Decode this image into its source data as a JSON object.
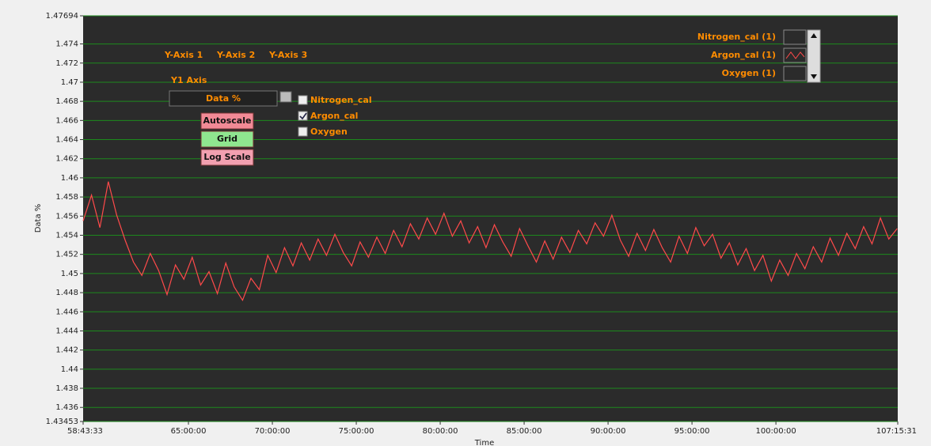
{
  "chart_data": {
    "type": "line",
    "x_label": "Time",
    "y_label": "Data %",
    "x": [
      211413,
      213213,
      215013,
      216813,
      218613,
      220413,
      222213,
      224013,
      225813,
      227613,
      229413,
      231213,
      233013,
      234813,
      236613,
      238413,
      240213,
      242013,
      243813,
      245613,
      247413,
      249213,
      251013,
      252813,
      254613,
      256413,
      258213,
      260013,
      261813,
      263613,
      265413,
      267213,
      269013,
      270813,
      272613,
      274413,
      276213,
      278013,
      279813,
      281613,
      283413,
      285213,
      287013,
      288813,
      290613,
      292413,
      294213,
      296013,
      297813,
      299613,
      301413,
      303213,
      305013,
      306813,
      308613,
      310413,
      312213,
      314013,
      315813,
      317613,
      319413,
      321213,
      323013,
      324813,
      326613,
      328413,
      330213,
      332013,
      333813,
      335613,
      337413,
      339213,
      341013,
      342813,
      344613,
      346413,
      348213,
      350013,
      351813,
      353613,
      355413,
      357213,
      359013,
      360813,
      362613,
      364413,
      366213,
      368013,
      369813,
      371613,
      373413,
      375213,
      377013,
      378813,
      380613,
      382413,
      384213,
      386013
    ],
    "series": [
      {
        "name": "Argon_cal (1)",
        "color": "#ff4a4a",
        "values": [
          1.4555,
          1.4582,
          1.4548,
          1.4596,
          1.4561,
          1.4535,
          1.4512,
          1.4498,
          1.4521,
          1.4503,
          1.4478,
          1.4509,
          1.4494,
          1.4517,
          1.4488,
          1.4502,
          1.4479,
          1.4511,
          1.4486,
          1.4472,
          1.4495,
          1.4483,
          1.4519,
          1.4501,
          1.4527,
          1.4508,
          1.4532,
          1.4514,
          1.4536,
          1.4519,
          1.4541,
          1.4522,
          1.4508,
          1.4533,
          1.4517,
          1.4538,
          1.4521,
          1.4545,
          1.4528,
          1.4552,
          1.4536,
          1.4558,
          1.4541,
          1.4563,
          1.4539,
          1.4555,
          1.4532,
          1.4549,
          1.4527,
          1.4551,
          1.4533,
          1.4518,
          1.4547,
          1.4529,
          1.4512,
          1.4534,
          1.4515,
          1.4538,
          1.4522,
          1.4545,
          1.4531,
          1.4553,
          1.4539,
          1.4561,
          1.4535,
          1.4518,
          1.4542,
          1.4524,
          1.4546,
          1.4527,
          1.4512,
          1.4539,
          1.4521,
          1.4548,
          1.4529,
          1.4541,
          1.4516,
          1.4532,
          1.4509,
          1.4526,
          1.4503,
          1.4519,
          1.4492,
          1.4514,
          1.4498,
          1.4521,
          1.4505,
          1.4528,
          1.4512,
          1.4537,
          1.4519,
          1.4542,
          1.4526,
          1.4549,
          1.4531,
          1.4558,
          1.4536,
          1.4547
        ]
      }
    ],
    "xlim": [
      211413,
      386131
    ],
    "xticks": [
      {
        "value": 211413,
        "label": "58:43:33"
      },
      {
        "value": 234000,
        "label": "65:00:00"
      },
      {
        "value": 252000,
        "label": "70:00:00"
      },
      {
        "value": 270000,
        "label": "75:00:00"
      },
      {
        "value": 288000,
        "label": "80:00:00"
      },
      {
        "value": 306000,
        "label": "85:00:00"
      },
      {
        "value": 324000,
        "label": "90:00:00"
      },
      {
        "value": 342000,
        "label": "95:00:00"
      },
      {
        "value": 360000,
        "label": "100:00:00"
      },
      {
        "value": 386131,
        "label": "107:15:31"
      }
    ],
    "ylim": [
      1.43453,
      1.47694
    ],
    "yticks": [
      1.43453,
      1.436,
      1.438,
      1.44,
      1.442,
      1.444,
      1.446,
      1.448,
      1.45,
      1.452,
      1.454,
      1.456,
      1.458,
      1.46,
      1.462,
      1.464,
      1.466,
      1.468,
      1.47,
      1.472,
      1.474,
      1.47694
    ],
    "grid": true,
    "grid_color": "#1c8a1c"
  },
  "ui": {
    "axis_tabs": [
      "Y-Axis 1",
      "Y-Axis 2",
      "Y-Axis 3"
    ],
    "axis_select_label": "Y1 Axis",
    "axis_select_value": "Data %",
    "buttons": [
      "Autoscale",
      "Grid",
      "Log Scale"
    ],
    "checkboxes": [
      {
        "label": "Nitrogen_cal",
        "checked": false
      },
      {
        "label": "Argon_cal",
        "checked": true
      },
      {
        "label": "Oxygen",
        "checked": false
      }
    ],
    "legend_others": [
      "Nitrogen_cal (1)",
      "Oxygen (1)"
    ]
  }
}
